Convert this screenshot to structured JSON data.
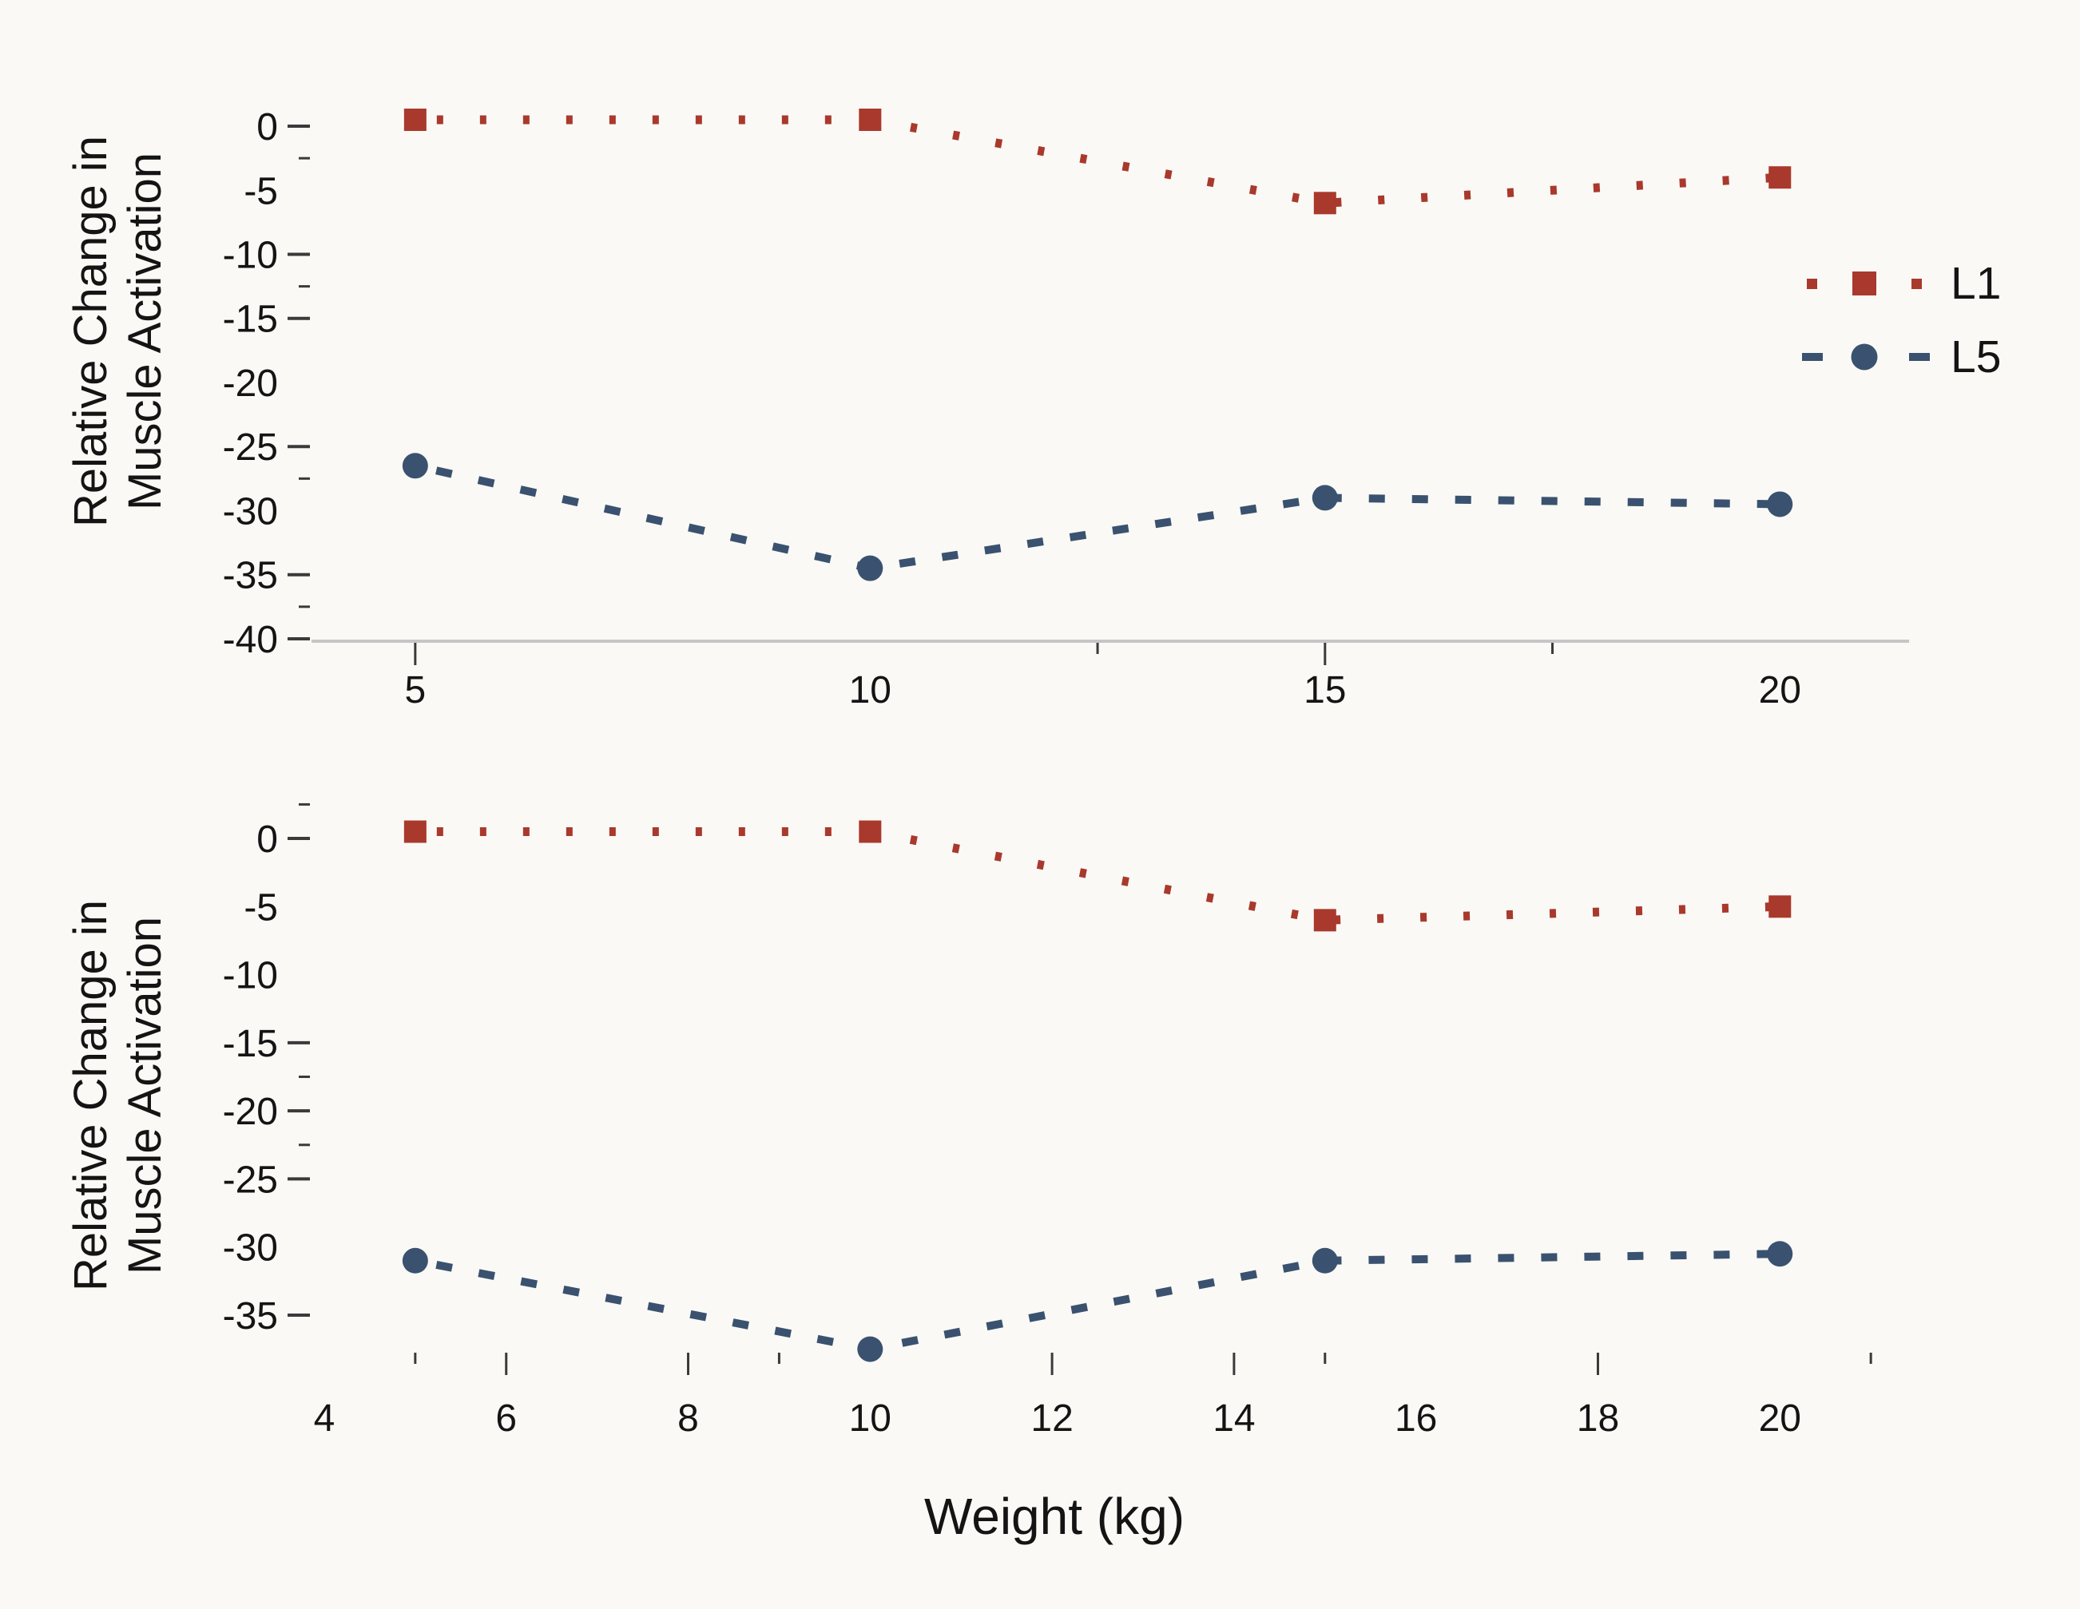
{
  "figure": {
    "background": "#FAF9F6"
  },
  "colors": {
    "l1": "#A9392C",
    "l5": "#3A526F",
    "axis_line": "#C6C6C6",
    "tick": "#3A3A3A",
    "text": "#141414"
  },
  "yaxis_title_line1": "Relative Change in",
  "yaxis_title_line2": "Muscle Activation",
  "xaxis_title": "Weight (kg)",
  "legend": {
    "items": [
      {
        "label": "L1",
        "series": "L1"
      },
      {
        "label": "L5",
        "series": "L5"
      }
    ]
  },
  "chart_data": [
    {
      "type": "line",
      "title": "",
      "xlabel": "",
      "ylabel": "Relative Change in Muscle Activation",
      "x": [
        5,
        10,
        15,
        20
      ],
      "series": [
        {
          "name": "L1",
          "marker": "square",
          "line_style": "dotted",
          "color": "#A9392C",
          "values": [
            0.5,
            0.5,
            -6,
            -4
          ]
        },
        {
          "name": "L5",
          "marker": "circle",
          "line_style": "dashed",
          "color": "#3A526F",
          "values": [
            -26.5,
            -34.5,
            -29,
            -29.5
          ]
        }
      ],
      "xlim": [
        3.86,
        21.42
      ],
      "ylim": [
        4.55,
        -40.19
      ],
      "y_tick_labels": [
        0,
        -5,
        -10,
        -15,
        -20,
        -25,
        -30,
        -35,
        -40
      ],
      "y_major_ticks": [
        0,
        -10,
        -15,
        -25,
        -35,
        -40
      ],
      "y_minor_ticks": [
        -2.5,
        -12.5,
        -27.5,
        -37.5
      ],
      "x_tick_labels": [
        5,
        10,
        15,
        20
      ],
      "x_major_ticks": [
        5,
        15
      ],
      "x_minor_ticks": [
        12.5,
        17.5
      ],
      "show_x_axis_line": true,
      "legend_position": "right"
    },
    {
      "type": "line",
      "title": "",
      "xlabel": "Weight (kg)",
      "ylabel": "Relative Change in Muscle Activation",
      "x": [
        5,
        10,
        15,
        20
      ],
      "series": [
        {
          "name": "L1",
          "marker": "square",
          "line_style": "dotted",
          "color": "#A9392C",
          "values": [
            0.5,
            0.5,
            -6,
            -5
          ]
        },
        {
          "name": "L5",
          "marker": "circle",
          "line_style": "dashed",
          "color": "#3A526F",
          "values": [
            -31,
            -37.5,
            -31,
            -30.5
          ]
        }
      ],
      "xlim": [
        3.86,
        21.42
      ],
      "ylim": [
        5.28,
        -37.64
      ],
      "y_tick_labels": [
        0,
        -5,
        -10,
        -15,
        -20,
        -25,
        -30,
        -35
      ],
      "y_major_ticks": [
        0,
        -15,
        -20,
        -25,
        -35
      ],
      "y_minor_ticks": [
        2.5,
        -17.5,
        -22.5
      ],
      "x_tick_labels": [
        4,
        6,
        8,
        10,
        12,
        14,
        16,
        18,
        20
      ],
      "x_major_ticks": [
        6,
        8,
        12,
        14,
        18
      ],
      "x_minor_ticks": [
        5,
        9,
        15,
        21
      ],
      "show_x_axis_line": false,
      "legend_position": "none"
    }
  ]
}
